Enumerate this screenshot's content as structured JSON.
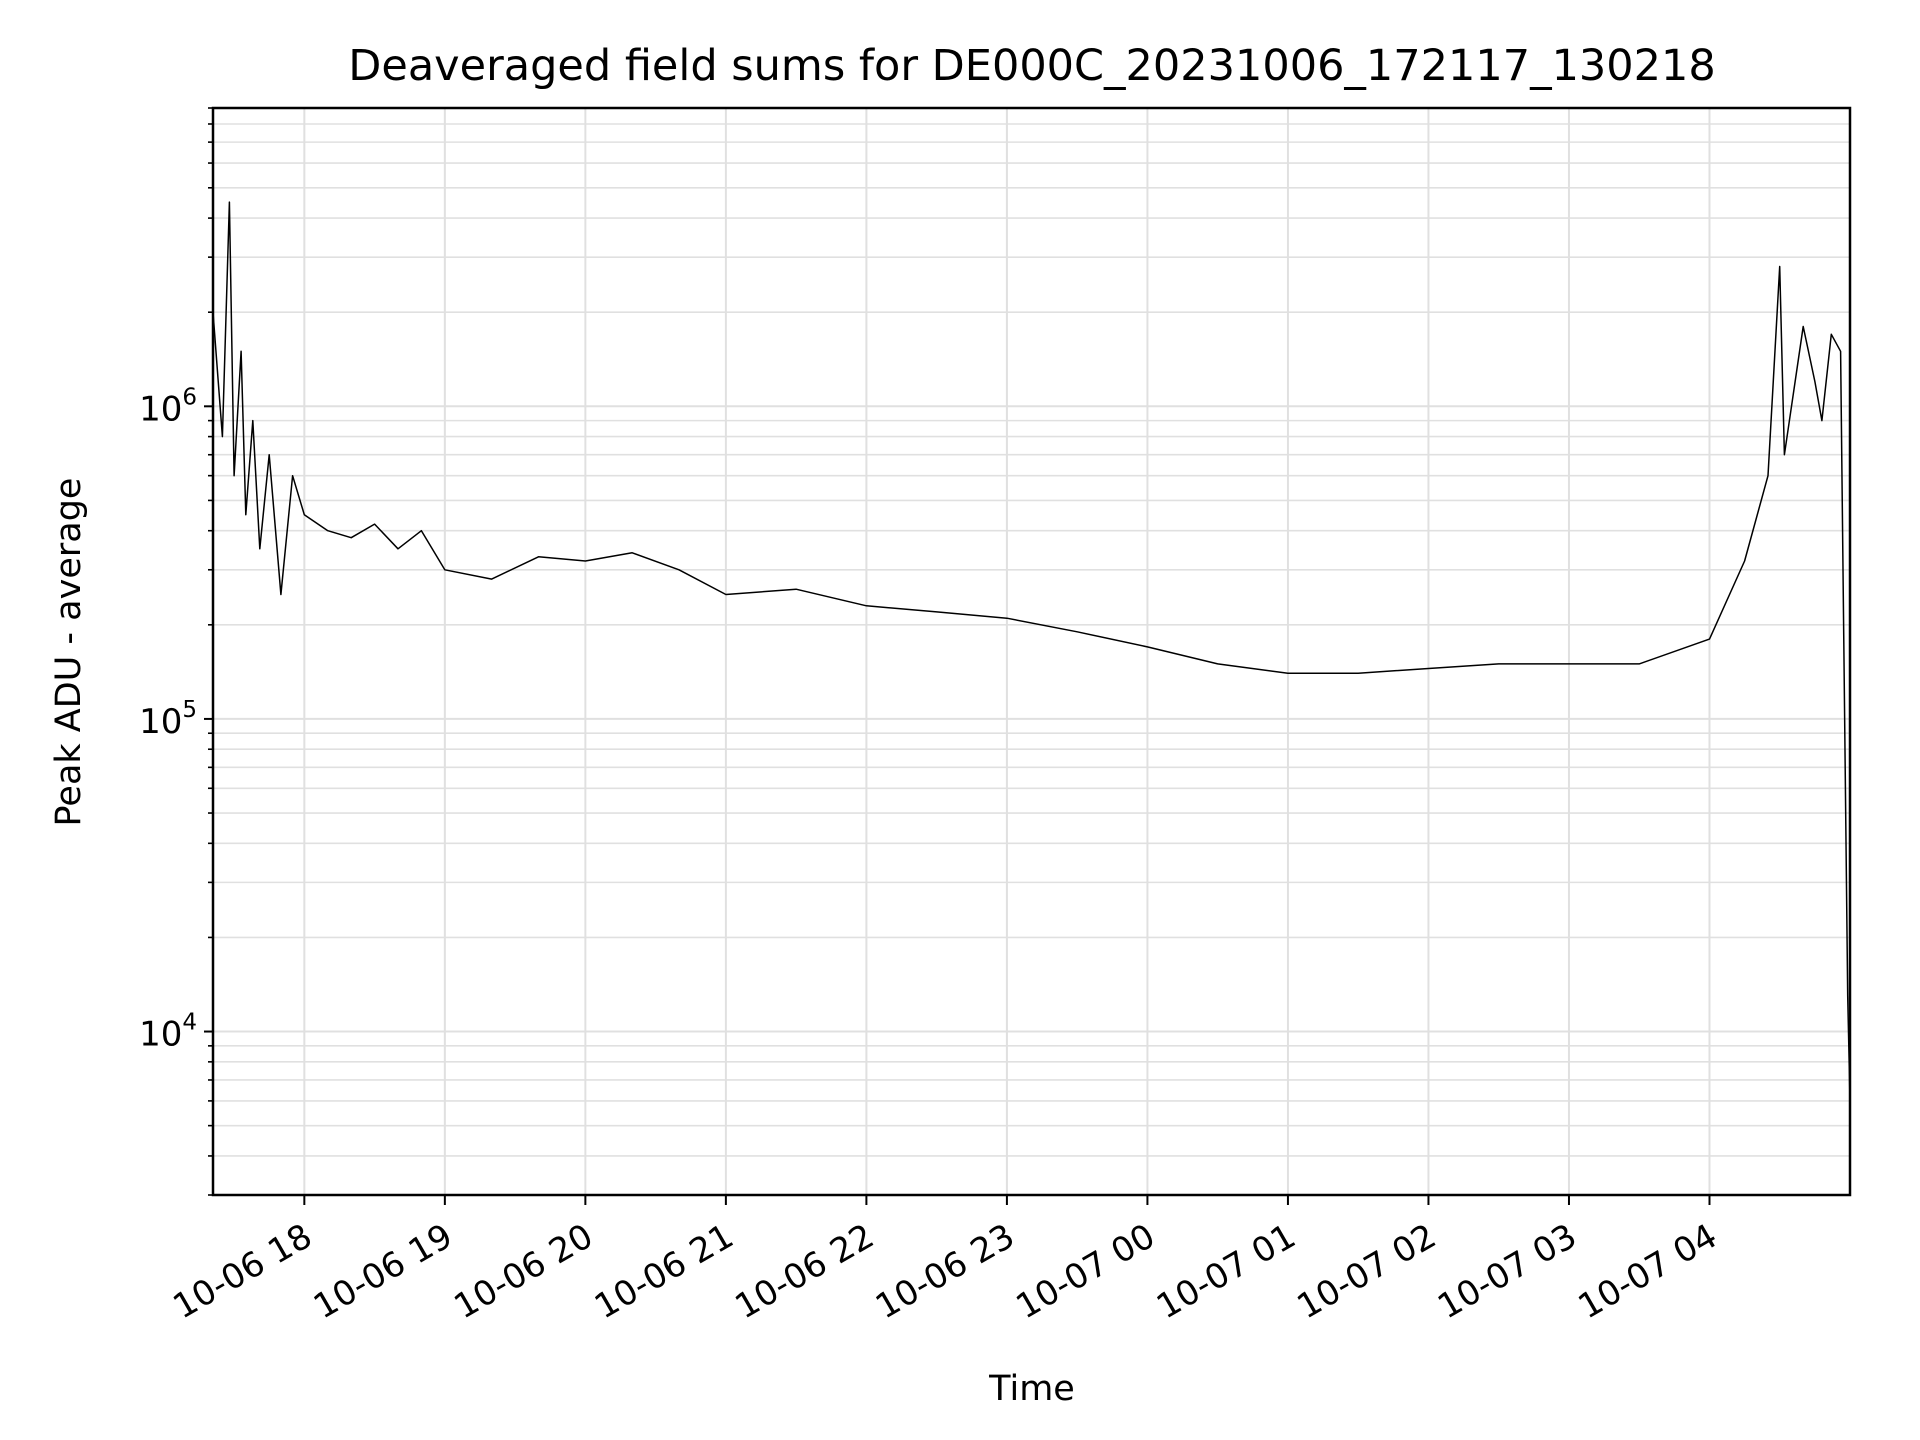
{
  "chart_data": {
    "type": "line",
    "title": "Deaveraged field sums for DE000C_20231006_172117_130218",
    "xlabel": "Time",
    "ylabel": "Peak ADU - average",
    "y_scale": "log",
    "ylim": [
      3000,
      9000000
    ],
    "xlim": [
      "2023-10-06 17:21",
      "2023-10-07 05:00"
    ],
    "grid": "major and minor",
    "line_color": "#000000",
    "grid_color": "#e0e0e0",
    "x_ticks": [
      {
        "t": "2023-10-06 18:00",
        "label": "10-06 18"
      },
      {
        "t": "2023-10-06 19:00",
        "label": "10-06 19"
      },
      {
        "t": "2023-10-06 20:00",
        "label": "10-06 20"
      },
      {
        "t": "2023-10-06 21:00",
        "label": "10-06 21"
      },
      {
        "t": "2023-10-06 22:00",
        "label": "10-06 22"
      },
      {
        "t": "2023-10-06 23:00",
        "label": "10-06 23"
      },
      {
        "t": "2023-10-07 00:00",
        "label": "10-07 00"
      },
      {
        "t": "2023-10-07 01:00",
        "label": "10-07 01"
      },
      {
        "t": "2023-10-07 02:00",
        "label": "10-07 02"
      },
      {
        "t": "2023-10-07 03:00",
        "label": "10-07 03"
      },
      {
        "t": "2023-10-07 04:00",
        "label": "10-07 04"
      }
    ],
    "y_ticks": [
      {
        "value": 10000,
        "base": "10",
        "exp": "4"
      },
      {
        "value": 100000,
        "base": "10",
        "exp": "5"
      },
      {
        "value": 1000000,
        "base": "10",
        "exp": "6"
      }
    ],
    "series": [
      {
        "points": [
          [
            "2023-10-06 17:21",
            2000000
          ],
          [
            "2023-10-06 17:25",
            800000
          ],
          [
            "2023-10-06 17:28",
            4500000
          ],
          [
            "2023-10-06 17:30",
            600000
          ],
          [
            "2023-10-06 17:33",
            1500000
          ],
          [
            "2023-10-06 17:35",
            450000
          ],
          [
            "2023-10-06 17:38",
            900000
          ],
          [
            "2023-10-06 17:41",
            350000
          ],
          [
            "2023-10-06 17:45",
            700000
          ],
          [
            "2023-10-06 17:50",
            250000
          ],
          [
            "2023-10-06 17:55",
            600000
          ],
          [
            "2023-10-06 18:00",
            450000
          ],
          [
            "2023-10-06 18:10",
            400000
          ],
          [
            "2023-10-06 18:20",
            380000
          ],
          [
            "2023-10-06 18:30",
            420000
          ],
          [
            "2023-10-06 18:40",
            350000
          ],
          [
            "2023-10-06 18:50",
            400000
          ],
          [
            "2023-10-06 19:00",
            300000
          ],
          [
            "2023-10-06 19:20",
            280000
          ],
          [
            "2023-10-06 19:40",
            330000
          ],
          [
            "2023-10-06 20:00",
            320000
          ],
          [
            "2023-10-06 20:20",
            340000
          ],
          [
            "2023-10-06 20:40",
            300000
          ],
          [
            "2023-10-06 21:00",
            250000
          ],
          [
            "2023-10-06 21:30",
            260000
          ],
          [
            "2023-10-06 22:00",
            230000
          ],
          [
            "2023-10-06 22:30",
            220000
          ],
          [
            "2023-10-06 23:00",
            210000
          ],
          [
            "2023-10-06 23:30",
            190000
          ],
          [
            "2023-10-07 00:00",
            170000
          ],
          [
            "2023-10-07 00:30",
            150000
          ],
          [
            "2023-10-07 01:00",
            140000
          ],
          [
            "2023-10-07 01:30",
            140000
          ],
          [
            "2023-10-07 02:00",
            145000
          ],
          [
            "2023-10-07 02:30",
            150000
          ],
          [
            "2023-10-07 03:00",
            150000
          ],
          [
            "2023-10-07 03:30",
            150000
          ],
          [
            "2023-10-07 04:00",
            180000
          ],
          [
            "2023-10-07 04:15",
            320000
          ],
          [
            "2023-10-07 04:25",
            600000
          ],
          [
            "2023-10-07 04:30",
            2800000
          ],
          [
            "2023-10-07 04:32",
            700000
          ],
          [
            "2023-10-07 04:35",
            1000000
          ],
          [
            "2023-10-07 04:40",
            1800000
          ],
          [
            "2023-10-07 04:45",
            1200000
          ],
          [
            "2023-10-07 04:48",
            900000
          ],
          [
            "2023-10-07 04:52",
            1700000
          ],
          [
            "2023-10-07 04:56",
            1500000
          ],
          [
            "2023-10-07 04:59",
            13000
          ],
          [
            "2023-10-07 05:00",
            6000
          ]
        ]
      }
    ]
  }
}
